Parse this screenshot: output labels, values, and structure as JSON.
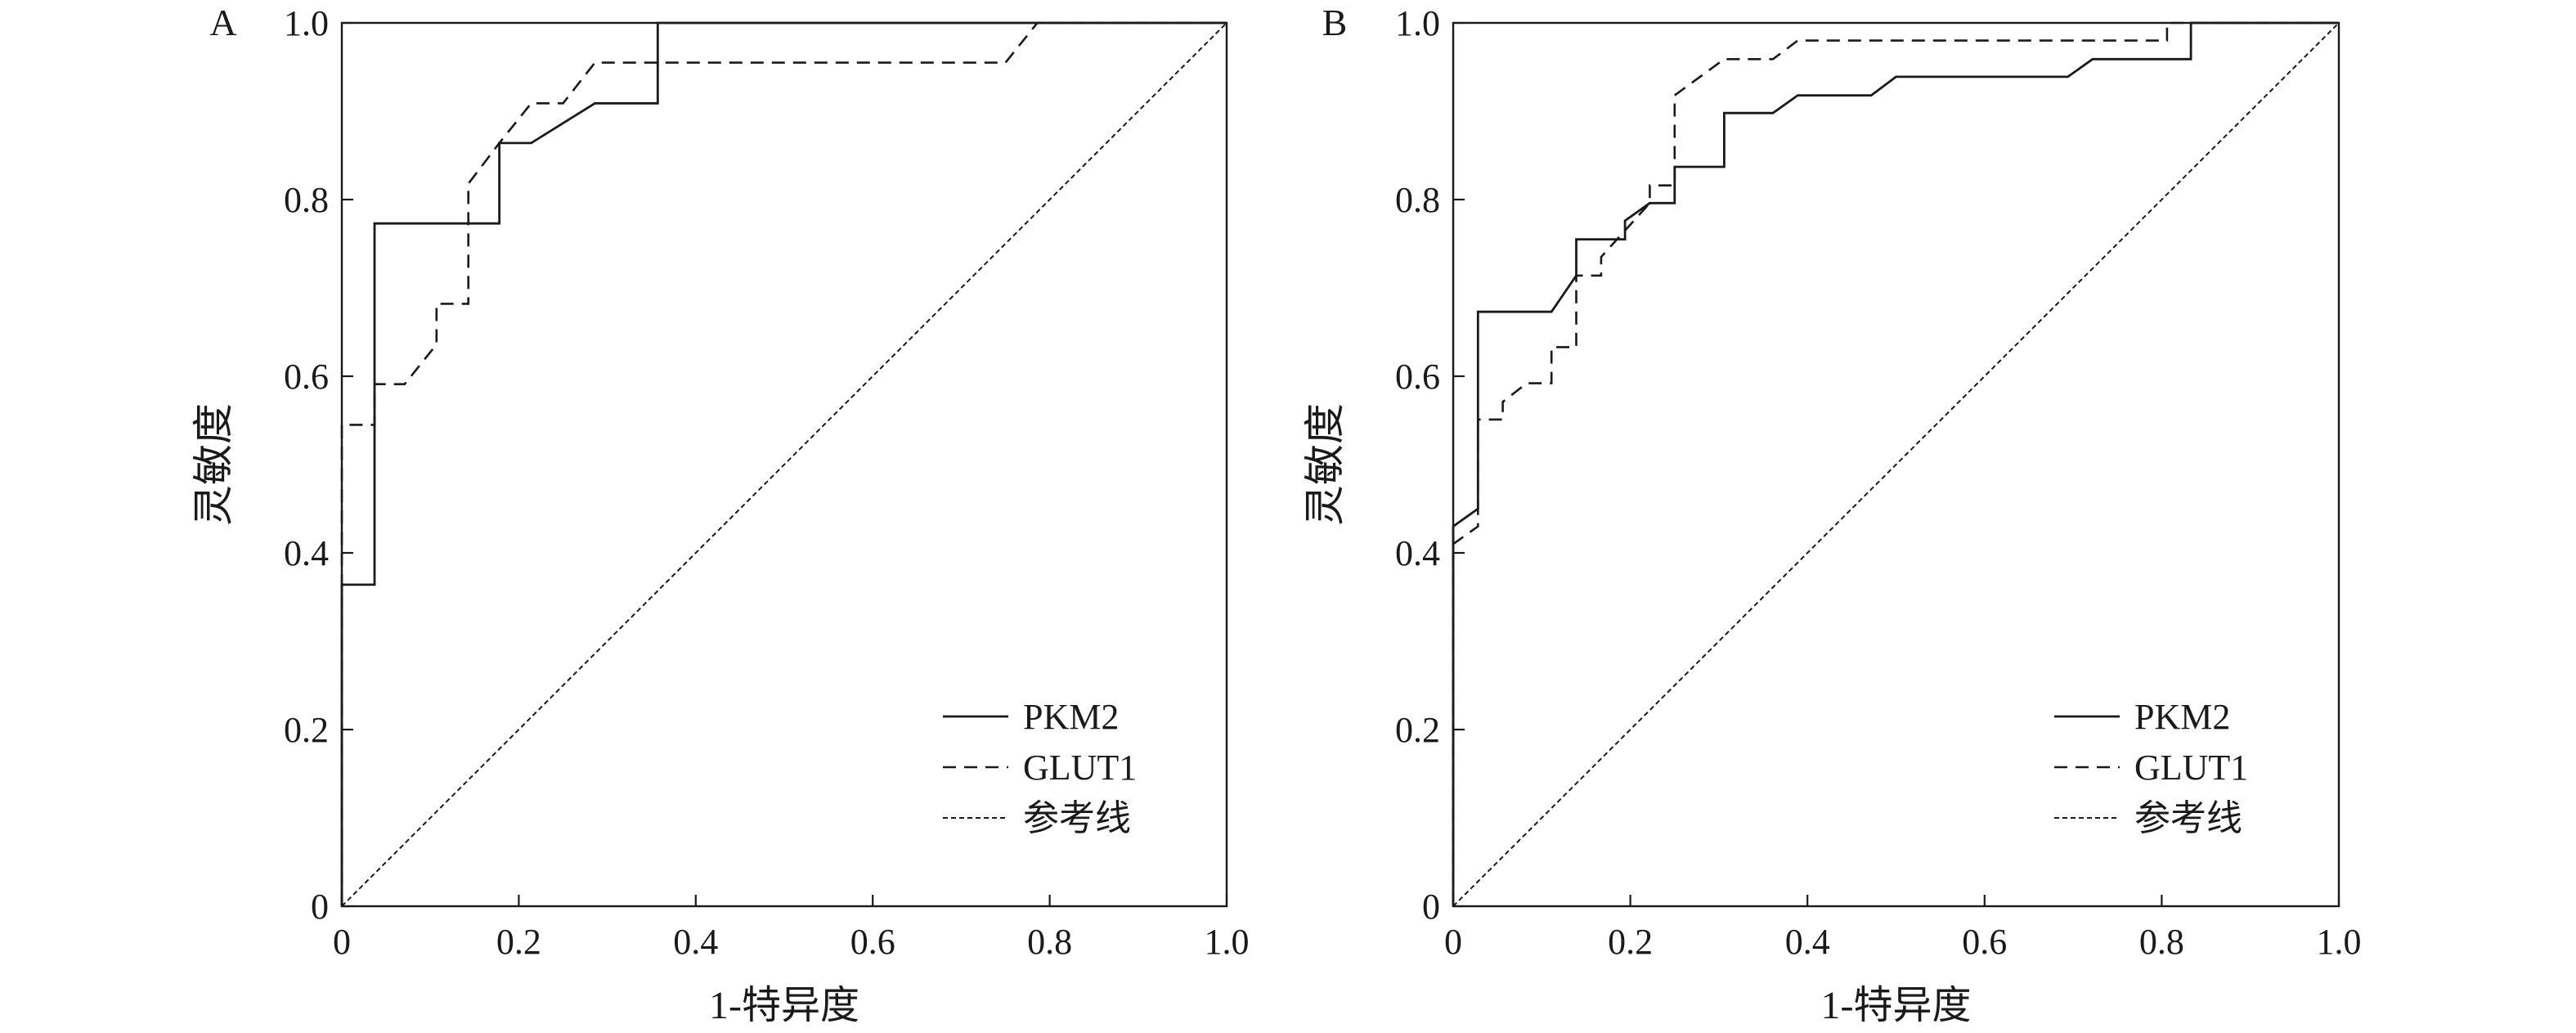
{
  "chart_data": [
    {
      "panel_label": "A",
      "type": "line",
      "xlabel": "1-特异度",
      "ylabel": "灵敏度",
      "xlim": [
        0,
        1.0
      ],
      "ylim": [
        0,
        1.0
      ],
      "x_ticks": [
        "0",
        "0.2",
        "0.4",
        "0.6",
        "0.8",
        "1.0"
      ],
      "y_ticks": [
        "0",
        "0.2",
        "0.4",
        "0.6",
        "0.8",
        "1.0"
      ],
      "grid": false,
      "legend_position": "bottom-right",
      "series": [
        {
          "name": "PKM2",
          "style": "solid",
          "points": [
            [
              0,
              0
            ],
            [
              0,
              0.364
            ],
            [
              0.037,
              0.364
            ],
            [
              0.037,
              0.773
            ],
            [
              0.178,
              0.773
            ],
            [
              0.178,
              0.864
            ],
            [
              0.214,
              0.864
            ],
            [
              0.286,
              0.909
            ],
            [
              0.357,
              0.909
            ],
            [
              0.357,
              1.0
            ],
            [
              1.0,
              1.0
            ]
          ]
        },
        {
          "name": "GLUT1",
          "style": "dashed",
          "points": [
            [
              0,
              0
            ],
            [
              0,
              0.545
            ],
            [
              0.037,
              0.545
            ],
            [
              0.037,
              0.591
            ],
            [
              0.071,
              0.591
            ],
            [
              0.107,
              0.636
            ],
            [
              0.107,
              0.682
            ],
            [
              0.143,
              0.682
            ],
            [
              0.143,
              0.818
            ],
            [
              0.178,
              0.864
            ],
            [
              0.214,
              0.909
            ],
            [
              0.25,
              0.909
            ],
            [
              0.286,
              0.955
            ],
            [
              0.75,
              0.955
            ],
            [
              0.786,
              1.0
            ],
            [
              1.0,
              1.0
            ]
          ]
        },
        {
          "name": "参考线",
          "style": "dotted",
          "points": [
            [
              0,
              0
            ],
            [
              1.0,
              1.0
            ]
          ]
        }
      ]
    },
    {
      "panel_label": "B",
      "type": "line",
      "xlabel": "1-特异度",
      "ylabel": "灵敏度",
      "xlim": [
        0,
        1.0
      ],
      "ylim": [
        0,
        1.0
      ],
      "x_ticks": [
        "0",
        "0.2",
        "0.4",
        "0.6",
        "0.8",
        "1.0"
      ],
      "y_ticks": [
        "0",
        "0.2",
        "0.4",
        "0.6",
        "0.8",
        "1.0"
      ],
      "grid": false,
      "legend_position": "bottom-right",
      "series": [
        {
          "name": "PKM2",
          "style": "solid",
          "points": [
            [
              0,
              0
            ],
            [
              0,
              0.43
            ],
            [
              0.028,
              0.45
            ],
            [
              0.028,
              0.673
            ],
            [
              0.111,
              0.673
            ],
            [
              0.139,
              0.714
            ],
            [
              0.139,
              0.755
            ],
            [
              0.194,
              0.755
            ],
            [
              0.194,
              0.776
            ],
            [
              0.222,
              0.796
            ],
            [
              0.25,
              0.796
            ],
            [
              0.25,
              0.837
            ],
            [
              0.306,
              0.837
            ],
            [
              0.306,
              0.898
            ],
            [
              0.361,
              0.898
            ],
            [
              0.389,
              0.918
            ],
            [
              0.472,
              0.918
            ],
            [
              0.5,
              0.939
            ],
            [
              0.694,
              0.939
            ],
            [
              0.722,
              0.959
            ],
            [
              0.833,
              0.959
            ],
            [
              0.833,
              1.0
            ],
            [
              1.0,
              1.0
            ]
          ]
        },
        {
          "name": "GLUT1",
          "style": "dashed",
          "points": [
            [
              0,
              0
            ],
            [
              0,
              0.41
            ],
            [
              0.028,
              0.43
            ],
            [
              0.028,
              0.551
            ],
            [
              0.056,
              0.551
            ],
            [
              0.056,
              0.571
            ],
            [
              0.083,
              0.592
            ],
            [
              0.111,
              0.592
            ],
            [
              0.111,
              0.633
            ],
            [
              0.139,
              0.633
            ],
            [
              0.139,
              0.714
            ],
            [
              0.167,
              0.714
            ],
            [
              0.167,
              0.735
            ],
            [
              0.222,
              0.796
            ],
            [
              0.222,
              0.816
            ],
            [
              0.25,
              0.816
            ],
            [
              0.25,
              0.918
            ],
            [
              0.306,
              0.959
            ],
            [
              0.361,
              0.959
            ],
            [
              0.389,
              0.98
            ],
            [
              0.806,
              0.98
            ],
            [
              0.806,
              1.0
            ],
            [
              1.0,
              1.0
            ]
          ]
        },
        {
          "name": "参考线",
          "style": "dotted",
          "points": [
            [
              0,
              0
            ],
            [
              1.0,
              1.0
            ]
          ]
        }
      ]
    }
  ]
}
